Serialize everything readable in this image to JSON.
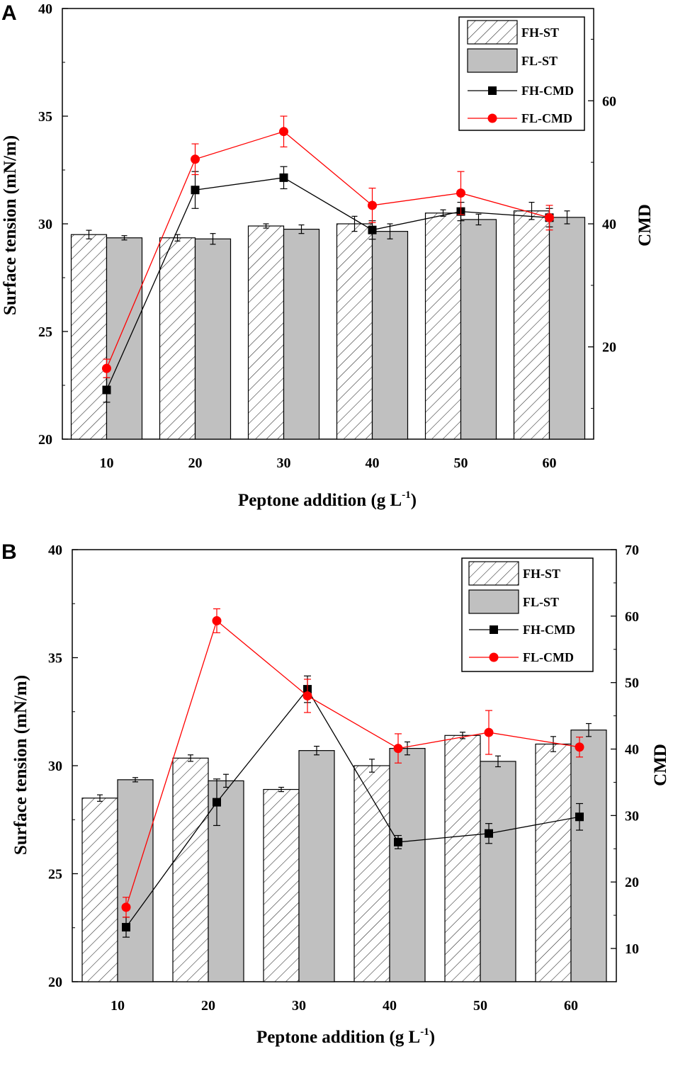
{
  "chart_data": [
    {
      "type": "bar",
      "panel_label": "A",
      "categories": [
        "10",
        "20",
        "30",
        "40",
        "50",
        "60"
      ],
      "xlabel": "Peptone addition (g L",
      "xlabel_sup": "-1",
      "xlabel_close": ")",
      "ylabel": "Surface tension (mN/m)",
      "y2label": "CMD",
      "ylim": [
        20,
        40
      ],
      "yticks": [
        20,
        25,
        30,
        35,
        40
      ],
      "y2lim": [
        5,
        75
      ],
      "y2ticks": [
        20,
        40,
        60
      ],
      "legend_position": "top-right",
      "colors": {
        "fl_st": "#c0c0c0",
        "fh_cmd": "#000000",
        "fl_cmd": "#ff0000"
      },
      "bar_series": [
        {
          "name": "FH-ST",
          "values": [
            29.5,
            29.35,
            29.9,
            30.0,
            30.5,
            30.6
          ],
          "errors": [
            0.2,
            0.15,
            0.1,
            0.35,
            0.15,
            0.4
          ]
        },
        {
          "name": "FL-ST",
          "values": [
            29.35,
            29.3,
            29.75,
            29.65,
            30.2,
            30.3
          ],
          "errors": [
            0.1,
            0.25,
            0.2,
            0.35,
            0.25,
            0.3
          ]
        }
      ],
      "line_series": [
        {
          "name": "FH-CMD",
          "values": [
            13.0,
            45.5,
            47.5,
            39.0,
            42.0,
            41.0
          ],
          "errors": [
            2.0,
            3.0,
            1.8,
            1.5,
            1.5,
            1.5
          ]
        },
        {
          "name": "FL-CMD",
          "values": [
            16.5,
            50.5,
            55.0,
            43.0,
            45.0,
            41.0
          ],
          "errors": [
            1.5,
            2.5,
            2.5,
            2.8,
            3.5,
            2.0
          ]
        }
      ]
    },
    {
      "type": "bar",
      "panel_label": "B",
      "categories": [
        "10",
        "20",
        "30",
        "40",
        "50",
        "60"
      ],
      "xlabel": "Peptone addition (g L",
      "xlabel_sup": "-1",
      "xlabel_close": ")",
      "ylabel": "Surface tension (mN/m)",
      "y2label": "CMD",
      "ylim": [
        20,
        40
      ],
      "yticks": [
        20,
        25,
        30,
        35,
        40
      ],
      "y2lim": [
        5,
        70
      ],
      "y2ticks": [
        10,
        20,
        30,
        40,
        50,
        60,
        70
      ],
      "legend_position": "top-right",
      "colors": {
        "fl_st": "#c0c0c0",
        "fh_cmd": "#000000",
        "fl_cmd": "#ff0000"
      },
      "bar_series": [
        {
          "name": "FH-ST",
          "values": [
            28.5,
            30.35,
            28.9,
            30.0,
            31.4,
            31.0
          ],
          "errors": [
            0.15,
            0.15,
            0.1,
            0.3,
            0.15,
            0.35
          ]
        },
        {
          "name": "FL-ST",
          "values": [
            29.35,
            29.3,
            30.7,
            30.8,
            30.2,
            31.65
          ],
          "errors": [
            0.1,
            0.3,
            0.2,
            0.3,
            0.25,
            0.3
          ]
        }
      ],
      "line_series": [
        {
          "name": "FH-CMD",
          "values": [
            13.2,
            32.0,
            49.0,
            26.0,
            27.3,
            29.8
          ],
          "errors": [
            1.5,
            3.5,
            2.0,
            1.0,
            1.5,
            2.0
          ]
        },
        {
          "name": "FL-CMD",
          "values": [
            16.2,
            59.3,
            48.0,
            40.1,
            42.5,
            40.3
          ],
          "errors": [
            1.5,
            1.8,
            2.5,
            2.2,
            3.3,
            1.5
          ]
        }
      ]
    }
  ]
}
